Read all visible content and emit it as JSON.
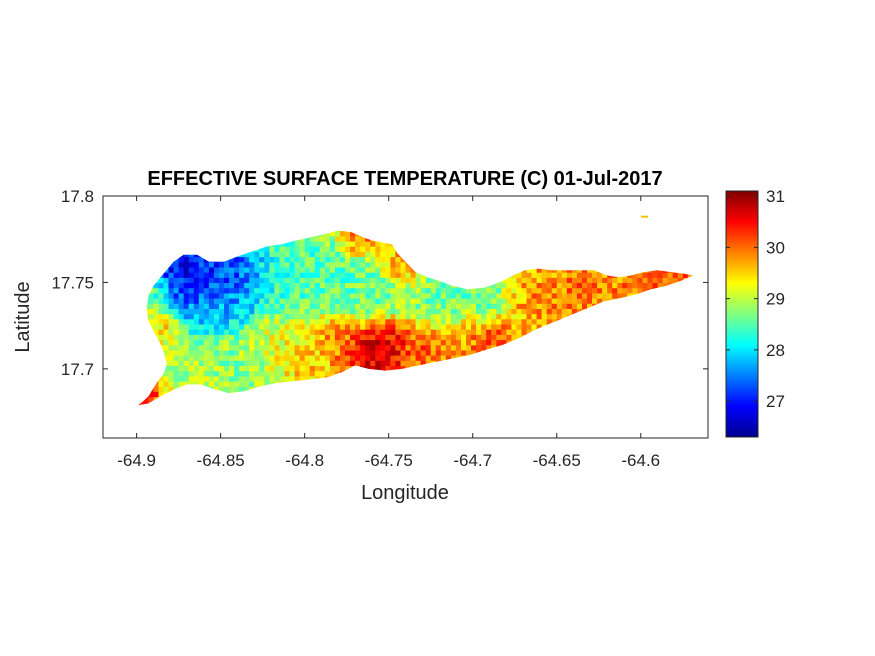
{
  "chart_data": {
    "type": "heatmap",
    "title": "EFFECTIVE SURFACE TEMPERATURE (C) 01-Jul-2017",
    "xlabel": "Longitude",
    "ylabel": "Latitude",
    "xlim": [
      -64.92,
      -64.56
    ],
    "ylim": [
      17.66,
      17.8
    ],
    "xticks": [
      -64.9,
      -64.85,
      -64.8,
      -64.75,
      -64.7,
      -64.65,
      -64.6
    ],
    "xtick_labels": [
      "-64.9",
      "-64.85",
      "-64.8",
      "-64.75",
      "-64.7",
      "-64.65",
      "-64.6"
    ],
    "yticks": [
      17.7,
      17.75,
      17.8
    ],
    "ytick_labels": [
      "17.7",
      "17.75",
      "17.8"
    ],
    "colorbar": {
      "min": 26.3,
      "max": 31.1,
      "ticks": [
        27,
        28,
        29,
        30,
        31
      ],
      "tick_labels": [
        "27",
        "28",
        "29",
        "30",
        "31"
      ],
      "colormap": "jet"
    },
    "island_outline": [
      [
        -64.899,
        17.679
      ],
      [
        -64.893,
        17.684
      ],
      [
        -64.888,
        17.692
      ],
      [
        -64.884,
        17.697
      ],
      [
        -64.882,
        17.703
      ],
      [
        -64.884,
        17.71
      ],
      [
        -64.886,
        17.715
      ],
      [
        -64.89,
        17.722
      ],
      [
        -64.893,
        17.728
      ],
      [
        -64.894,
        17.735
      ],
      [
        -64.893,
        17.742
      ],
      [
        -64.89,
        17.748
      ],
      [
        -64.884,
        17.755
      ],
      [
        -64.878,
        17.762
      ],
      [
        -64.872,
        17.766
      ],
      [
        -64.864,
        17.766
      ],
      [
        -64.857,
        17.762
      ],
      [
        -64.848,
        17.762
      ],
      [
        -64.84,
        17.765
      ],
      [
        -64.831,
        17.768
      ],
      [
        -64.822,
        17.771
      ],
      [
        -64.814,
        17.772
      ],
      [
        -64.806,
        17.774
      ],
      [
        -64.797,
        17.776
      ],
      [
        -64.788,
        17.778
      ],
      [
        -64.78,
        17.78
      ],
      [
        -64.772,
        17.779
      ],
      [
        -64.765,
        17.776
      ],
      [
        -64.759,
        17.774
      ],
      [
        -64.753,
        17.773
      ],
      [
        -64.748,
        17.772
      ],
      [
        -64.745,
        17.767
      ],
      [
        -64.74,
        17.762
      ],
      [
        -64.734,
        17.756
      ],
      [
        -64.727,
        17.753
      ],
      [
        -64.72,
        17.751
      ],
      [
        -64.712,
        17.748
      ],
      [
        -64.703,
        17.746
      ],
      [
        -64.693,
        17.747
      ],
      [
        -64.684,
        17.75
      ],
      [
        -64.676,
        17.754
      ],
      [
        -64.669,
        17.757
      ],
      [
        -64.661,
        17.758
      ],
      [
        -64.653,
        17.757
      ],
      [
        -64.645,
        17.757
      ],
      [
        -64.637,
        17.757
      ],
      [
        -64.628,
        17.757
      ],
      [
        -64.62,
        17.754
      ],
      [
        -64.613,
        17.753
      ],
      [
        -64.606,
        17.754
      ],
      [
        -64.598,
        17.756
      ],
      [
        -64.59,
        17.757
      ],
      [
        -64.582,
        17.756
      ],
      [
        -64.574,
        17.755
      ],
      [
        -64.569,
        17.754
      ],
      [
        -64.576,
        17.751
      ],
      [
        -64.585,
        17.748
      ],
      [
        -64.594,
        17.746
      ],
      [
        -64.603,
        17.743
      ],
      [
        -64.612,
        17.741
      ],
      [
        -64.622,
        17.739
      ],
      [
        -64.632,
        17.735
      ],
      [
        -64.642,
        17.731
      ],
      [
        -64.652,
        17.727
      ],
      [
        -64.662,
        17.723
      ],
      [
        -64.672,
        17.718
      ],
      [
        -64.682,
        17.714
      ],
      [
        -64.692,
        17.711
      ],
      [
        -64.702,
        17.708
      ],
      [
        -64.712,
        17.706
      ],
      [
        -64.722,
        17.704
      ],
      [
        -64.732,
        17.702
      ],
      [
        -64.742,
        17.7
      ],
      [
        -64.752,
        17.699
      ],
      [
        -64.762,
        17.7
      ],
      [
        -64.77,
        17.702
      ],
      [
        -64.778,
        17.698
      ],
      [
        -64.787,
        17.695
      ],
      [
        -64.796,
        17.694
      ],
      [
        -64.806,
        17.693
      ],
      [
        -64.816,
        17.692
      ],
      [
        -64.826,
        17.69
      ],
      [
        -64.836,
        17.687
      ],
      [
        -64.845,
        17.686
      ],
      [
        -64.853,
        17.688
      ],
      [
        -64.862,
        17.691
      ],
      [
        -64.87,
        17.691
      ],
      [
        -64.878,
        17.688
      ],
      [
        -64.886,
        17.684
      ],
      [
        -64.893,
        17.68
      ]
    ],
    "hotspots": [
      {
        "lon": -64.878,
        "lat": 17.753,
        "value": 26.5,
        "radius": 0.012
      },
      {
        "lon": -64.86,
        "lat": 17.752,
        "value": 26.9,
        "radius": 0.012
      },
      {
        "lon": -64.842,
        "lat": 17.753,
        "value": 27.0,
        "radius": 0.011
      },
      {
        "lon": -64.868,
        "lat": 17.737,
        "value": 27.6,
        "radius": 0.01
      },
      {
        "lon": -64.845,
        "lat": 17.738,
        "value": 27.8,
        "radius": 0.01
      },
      {
        "lon": -64.815,
        "lat": 17.752,
        "value": 28.3,
        "radius": 0.012
      },
      {
        "lon": -64.79,
        "lat": 17.756,
        "value": 28.4,
        "radius": 0.012
      },
      {
        "lon": -64.765,
        "lat": 17.745,
        "value": 28.5,
        "radius": 0.012
      },
      {
        "lon": -64.72,
        "lat": 17.735,
        "value": 28.5,
        "radius": 0.01
      },
      {
        "lon": -64.695,
        "lat": 17.738,
        "value": 28.4,
        "radius": 0.01
      },
      {
        "lon": -64.885,
        "lat": 17.725,
        "value": 29.7,
        "radius": 0.007
      },
      {
        "lon": -64.875,
        "lat": 17.7,
        "value": 28.9,
        "radius": 0.01
      },
      {
        "lon": -64.84,
        "lat": 17.7,
        "value": 28.7,
        "radius": 0.01
      },
      {
        "lon": -64.82,
        "lat": 17.712,
        "value": 29.2,
        "radius": 0.01
      },
      {
        "lon": -64.8,
        "lat": 17.705,
        "value": 29.6,
        "radius": 0.009
      },
      {
        "lon": -64.783,
        "lat": 17.715,
        "value": 29.9,
        "radius": 0.008
      },
      {
        "lon": -64.762,
        "lat": 17.708,
        "value": 30.9,
        "radius": 0.01
      },
      {
        "lon": -64.752,
        "lat": 17.713,
        "value": 30.6,
        "radius": 0.007
      },
      {
        "lon": -64.77,
        "lat": 17.775,
        "value": 30.2,
        "radius": 0.007
      },
      {
        "lon": -64.745,
        "lat": 17.76,
        "value": 29.9,
        "radius": 0.007
      },
      {
        "lon": -64.73,
        "lat": 17.712,
        "value": 30.2,
        "radius": 0.009
      },
      {
        "lon": -64.705,
        "lat": 17.715,
        "value": 29.9,
        "radius": 0.01
      },
      {
        "lon": -64.69,
        "lat": 17.718,
        "value": 30.4,
        "radius": 0.008
      },
      {
        "lon": -64.665,
        "lat": 17.738,
        "value": 29.9,
        "radius": 0.011
      },
      {
        "lon": -64.64,
        "lat": 17.745,
        "value": 30.1,
        "radius": 0.012
      },
      {
        "lon": -64.61,
        "lat": 17.748,
        "value": 30.0,
        "radius": 0.01
      },
      {
        "lon": -64.585,
        "lat": 17.752,
        "value": 30.3,
        "radius": 0.008
      },
      {
        "lon": -64.895,
        "lat": 17.682,
        "value": 30.5,
        "radius": 0.006
      },
      {
        "lon": -64.895,
        "lat": 17.745,
        "value": 29.4,
        "radius": 0.008
      }
    ],
    "background_value": 29.1,
    "speck": {
      "lon": -64.598,
      "lat": 17.788,
      "value": 29.6
    }
  }
}
